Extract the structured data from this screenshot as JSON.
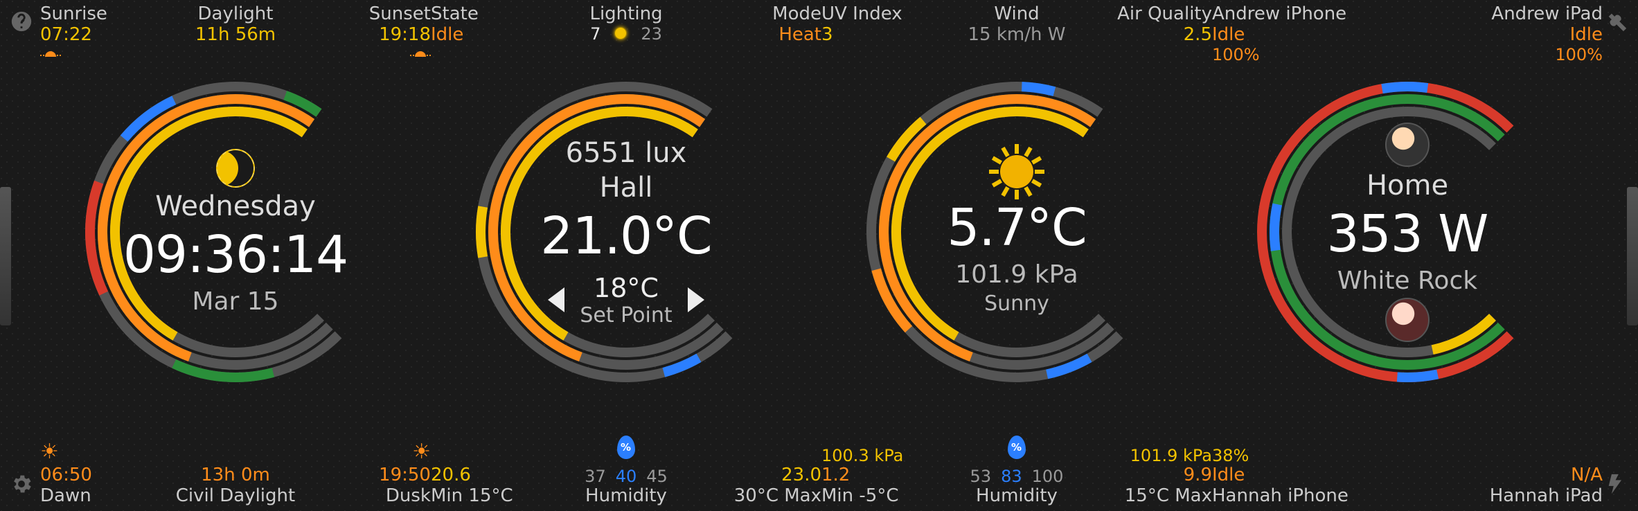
{
  "colors": {
    "yellow": "#f2c200",
    "orange": "#ff8c1a",
    "gray": "#9a9a9a",
    "blue": "#2b7fff",
    "red": "#d83a2b",
    "green": "#2a8f3a",
    "track": "#555555"
  },
  "panel1": {
    "top": {
      "left": {
        "label": "Sunrise",
        "value": "07:22",
        "value_color": "yellow"
      },
      "mid": {
        "label": "Daylight",
        "value": "11h 56m",
        "value_color": "yellow"
      },
      "right": {
        "label": "Sunset",
        "value": "19:18",
        "value_color": "yellow"
      }
    },
    "center": {
      "icon": "moon",
      "line1": "Wednesday",
      "big": "09:36:14",
      "line2": "Mar 15"
    },
    "bottom": {
      "left": {
        "value": "06:50",
        "value_color": "orange",
        "label": "Dawn"
      },
      "mid": {
        "value": "13h 0m",
        "value_color": "orange",
        "label": "Civil Daylight"
      },
      "right": {
        "value": "19:50",
        "value_color": "orange",
        "label": "Dusk"
      }
    },
    "rings": [
      {
        "r": 210,
        "w": 14,
        "segs": [
          {
            "start": 135,
            "end": 395,
            "color": "track"
          },
          {
            "start": 165,
            "end": 205,
            "color": "green"
          },
          {
            "start": 245,
            "end": 290,
            "color": "red"
          },
          {
            "start": 310,
            "end": 335,
            "color": "blue"
          },
          {
            "start": 380,
            "end": 395,
            "color": "green"
          }
        ]
      },
      {
        "r": 192,
        "w": 14,
        "segs": [
          {
            "start": 135,
            "end": 395,
            "color": "track"
          },
          {
            "start": 200,
            "end": 395,
            "color": "orange"
          }
        ]
      },
      {
        "r": 174,
        "w": 14,
        "segs": [
          {
            "start": 135,
            "end": 395,
            "color": "track"
          },
          {
            "start": 210,
            "end": 395,
            "color": "yellow"
          }
        ]
      }
    ]
  },
  "panel2": {
    "top": {
      "left": {
        "label": "State",
        "value": "Idle",
        "value_color": "orange"
      },
      "mid": {
        "label": "Lighting",
        "left_num": "7",
        "right_num": "23"
      },
      "right": {
        "label": "Mode",
        "value": "Heat",
        "value_color": "orange"
      }
    },
    "center": {
      "line1": "6551 lux",
      "line1b": "Hall",
      "big": "21.0°C",
      "setpoint": "18°C",
      "sp_label": "Set Point"
    },
    "bottom": {
      "left": {
        "value": "20.6",
        "value_color": "yellow",
        "label": "Min 15°C"
      },
      "mid": {
        "left_num": "37",
        "center_num": "40",
        "right_num": "45",
        "label": "Humidity"
      },
      "right": {
        "value": "23.0",
        "value_color": "yellow",
        "label": "30°C Max"
      }
    },
    "rings": [
      {
        "r": 210,
        "w": 14,
        "segs": [
          {
            "start": 135,
            "end": 395,
            "color": "track"
          },
          {
            "start": 150,
            "end": 165,
            "color": "blue"
          },
          {
            "start": 260,
            "end": 280,
            "color": "yellow"
          }
        ]
      },
      {
        "r": 192,
        "w": 14,
        "segs": [
          {
            "start": 135,
            "end": 395,
            "color": "track"
          },
          {
            "start": 200,
            "end": 395,
            "color": "orange"
          }
        ]
      },
      {
        "r": 174,
        "w": 14,
        "segs": [
          {
            "start": 135,
            "end": 395,
            "color": "track"
          },
          {
            "start": 210,
            "end": 395,
            "color": "yellow"
          }
        ]
      }
    ]
  },
  "panel3": {
    "top": {
      "left": {
        "label": "UV Index",
        "value": "3",
        "value_color": "yellow"
      },
      "mid": {
        "label": "Wind",
        "value": "15 km/h W",
        "value_color": "gray"
      },
      "right": {
        "label": "Air Quality",
        "value": "2.5",
        "value_color": "yellow"
      }
    },
    "center": {
      "icon": "sun",
      "big": "5.7°C",
      "line2": "101.9 kPa",
      "line3": "Sunny"
    },
    "bottom": {
      "left": {
        "above": "100.3 kPa",
        "above_color": "yellow",
        "value": "1.2",
        "value_color": "orange",
        "label": "Min -5°C"
      },
      "mid": {
        "left_num": "53",
        "center_num": "83",
        "right_num": "100",
        "label": "Humidity"
      },
      "right": {
        "above": "101.9 kPa",
        "above_color": "yellow",
        "value": "9.9",
        "value_color": "orange",
        "label": "15°C Max"
      }
    },
    "rings": [
      {
        "r": 210,
        "w": 14,
        "segs": [
          {
            "start": 135,
            "end": 395,
            "color": "track"
          },
          {
            "start": 150,
            "end": 168,
            "color": "blue"
          },
          {
            "start": 228,
            "end": 255,
            "color": "orange"
          },
          {
            "start": 300,
            "end": 320,
            "color": "yellow"
          },
          {
            "start": 362,
            "end": 375,
            "color": "blue"
          }
        ]
      },
      {
        "r": 192,
        "w": 14,
        "segs": [
          {
            "start": 135,
            "end": 395,
            "color": "track"
          },
          {
            "start": 200,
            "end": 395,
            "color": "orange"
          }
        ]
      },
      {
        "r": 174,
        "w": 14,
        "segs": [
          {
            "start": 135,
            "end": 395,
            "color": "track"
          },
          {
            "start": 210,
            "end": 395,
            "color": "yellow"
          }
        ]
      }
    ]
  },
  "panel4": {
    "top": {
      "left": {
        "label": "Andrew iPhone",
        "value": "Idle",
        "value_color": "orange",
        "sub": "100%",
        "sub_color": "orange"
      },
      "mid": null,
      "right": {
        "label": "Andrew iPad",
        "value": "Idle",
        "value_color": "orange",
        "sub": "100%",
        "sub_color": "orange"
      }
    },
    "center": {
      "avatar_top": "andrew",
      "line1": "Home",
      "big": "353 W",
      "line2": "White Rock",
      "avatar_bottom": "hannah"
    },
    "bottom": {
      "left": {
        "above": "38%",
        "above_color": "yellow",
        "value": "Idle",
        "value_color": "orange",
        "label": "Hannah iPhone"
      },
      "mid": null,
      "right": {
        "value": "N/A",
        "value_color": "orange",
        "label": "Hannah iPad"
      }
    },
    "rings": [
      {
        "r": 210,
        "w": 14,
        "segs": [
          {
            "start": 135,
            "end": 405,
            "color": "red"
          },
          {
            "start": 168,
            "end": 184,
            "color": "blue"
          },
          {
            "start": 350,
            "end": 368,
            "color": "blue"
          }
        ]
      },
      {
        "r": 192,
        "w": 14,
        "segs": [
          {
            "start": 135,
            "end": 405,
            "color": "green"
          },
          {
            "start": 262,
            "end": 282,
            "color": "blue"
          }
        ]
      },
      {
        "r": 174,
        "w": 14,
        "segs": [
          {
            "start": 135,
            "end": 405,
            "color": "track"
          },
          {
            "start": 135,
            "end": 168,
            "color": "yellow"
          }
        ]
      }
    ]
  }
}
